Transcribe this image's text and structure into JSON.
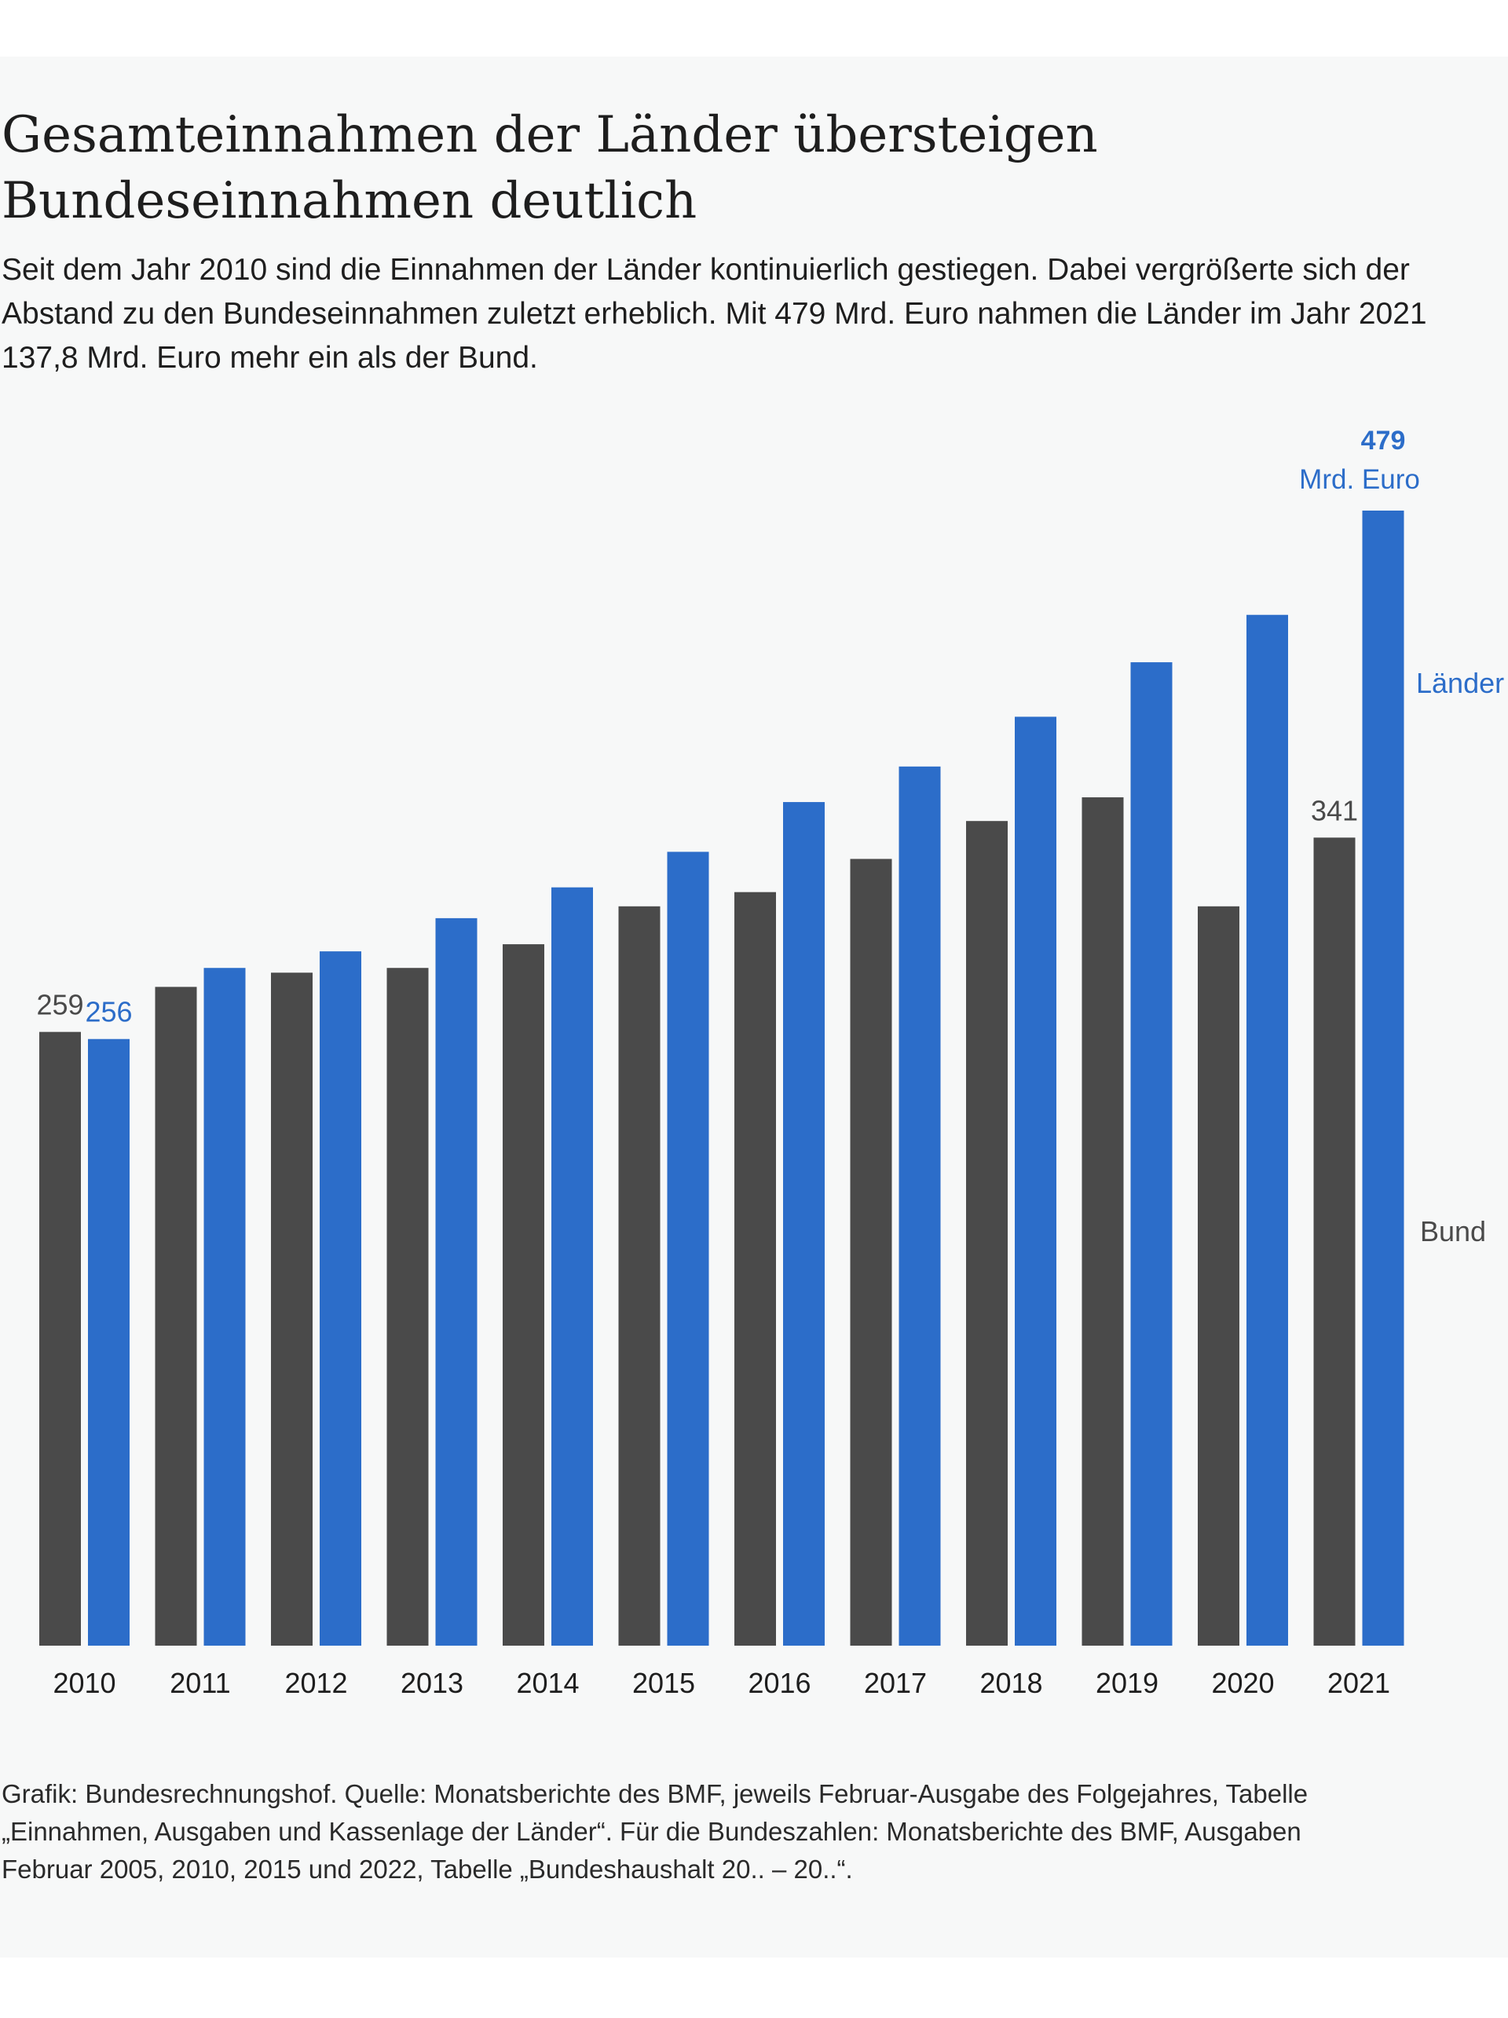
{
  "header": {
    "title": "Gesamteinnahmen der Länder übersteigen Bundeseinnahmen deutlich",
    "subtitle": "Seit dem Jahr 2010 sind die Einnahmen der Länder kontinuierlich gestiegen. Dabei vergrößerte sich der Abstand zu den Bundeseinnahmen zuletzt erheblich. Mit 479 Mrd. Euro nahmen die Länder im Jahr 2021 137,8 Mrd. Euro mehr ein als der Bund."
  },
  "chart_data": {
    "type": "bar",
    "categories": [
      "2010",
      "2011",
      "2012",
      "2013",
      "2014",
      "2015",
      "2016",
      "2017",
      "2018",
      "2019",
      "2020",
      "2021"
    ],
    "series": [
      {
        "name": "Bund",
        "color": "#4a4a4a",
        "values": [
          259,
          278,
          284,
          286,
          296,
          312,
          318,
          332,
          348,
          358,
          312,
          341
        ],
        "value_labels": [
          "259",
          "",
          "",
          "",
          "",
          "",
          "",
          "",
          "",
          "",
          "",
          "341"
        ]
      },
      {
        "name": "Länder",
        "color": "#2c6dc9",
        "values": [
          256,
          286,
          293,
          307,
          320,
          335,
          356,
          371,
          392,
          415,
          435,
          479
        ],
        "value_labels": [
          "256",
          "",
          "",
          "",
          "",
          "",
          "",
          "",
          "",
          "",
          "",
          "479"
        ]
      }
    ],
    "final_label_unit": "Mrd. Euro",
    "ylim": [
      0,
      479
    ],
    "grid": false,
    "legend_placement": "right, beside the last bars"
  },
  "footnote": {
    "lines": [
      "Grafik: Bundesrechnungshof. Quelle: Monatsberichte des BMF, jeweils Februar-Ausgabe des Folgejahres, Tabelle",
      "„Einnahmen, Ausgaben und Kassenlage der Länder“. Für die Bundeszahlen: Monatsberichte des BMF, Ausgaben",
      "Februar 2005, 2010, 2015 und 2022, Tabelle „Bundeshaushalt 20.. – 20..“."
    ]
  }
}
